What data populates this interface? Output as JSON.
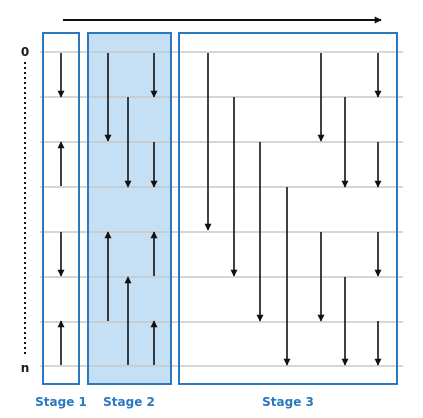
{
  "diagram": {
    "row_top_label": "0",
    "row_bottom_label": "n",
    "stages": [
      {
        "label": "Stage 1",
        "highlighted": false
      },
      {
        "label": "Stage 2",
        "highlighted": true
      },
      {
        "label": "Stage 3",
        "highlighted": false
      }
    ],
    "colors": {
      "stage_border": "#2a78bf",
      "stage_fill_highlight": "#c5dff5",
      "stage_label": "#2a78bf",
      "row_line": "#c8c8c8",
      "arrow": "#111111"
    }
  }
}
